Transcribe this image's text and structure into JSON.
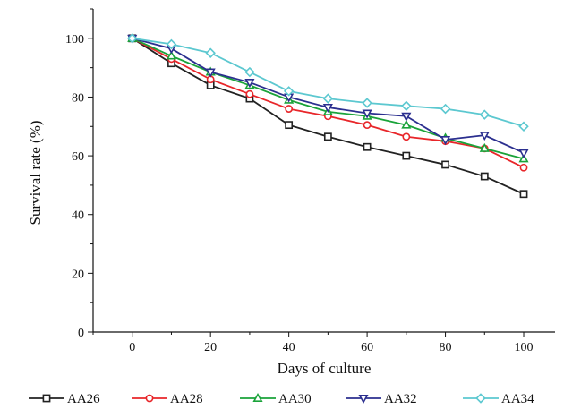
{
  "chart_data": {
    "type": "line",
    "title": "",
    "xlabel": "Days of culture",
    "ylabel": "Survival rate (%)",
    "x": [
      0,
      10,
      20,
      30,
      40,
      50,
      60,
      70,
      80,
      90,
      100
    ],
    "xlim": [
      -10,
      108
    ],
    "ylim": [
      0,
      110
    ],
    "xticks": [
      0,
      20,
      40,
      60,
      80,
      100
    ],
    "yticks": [
      0,
      20,
      40,
      60,
      80,
      100
    ],
    "grid": false,
    "legend": "bottom",
    "series": [
      {
        "name": "AA26",
        "marker": "square",
        "color": "#222222",
        "values": [
          100,
          91.5,
          84,
          79.5,
          70.5,
          66.5,
          63,
          60,
          57,
          53,
          47
        ]
      },
      {
        "name": "AA28",
        "marker": "circle",
        "color": "#e8262a",
        "values": [
          100,
          93,
          86,
          81,
          76,
          73.5,
          70.5,
          66.5,
          65,
          62.5,
          56
        ]
      },
      {
        "name": "AA30",
        "marker": "triangle-up",
        "color": "#1aa33a",
        "values": [
          100,
          94,
          88.5,
          84,
          79,
          75,
          73.5,
          70.5,
          66,
          62.5,
          59
        ]
      },
      {
        "name": "AA32",
        "marker": "triangle-down",
        "color": "#2b2f8f",
        "values": [
          100,
          96.5,
          88.5,
          85,
          80,
          76.5,
          74.5,
          73.5,
          65.5,
          67,
          61
        ]
      },
      {
        "name": "AA34",
        "marker": "diamond",
        "color": "#5cc8d0",
        "values": [
          100,
          98,
          95,
          88.5,
          82,
          79.5,
          78,
          77,
          76,
          74,
          70
        ]
      }
    ]
  }
}
